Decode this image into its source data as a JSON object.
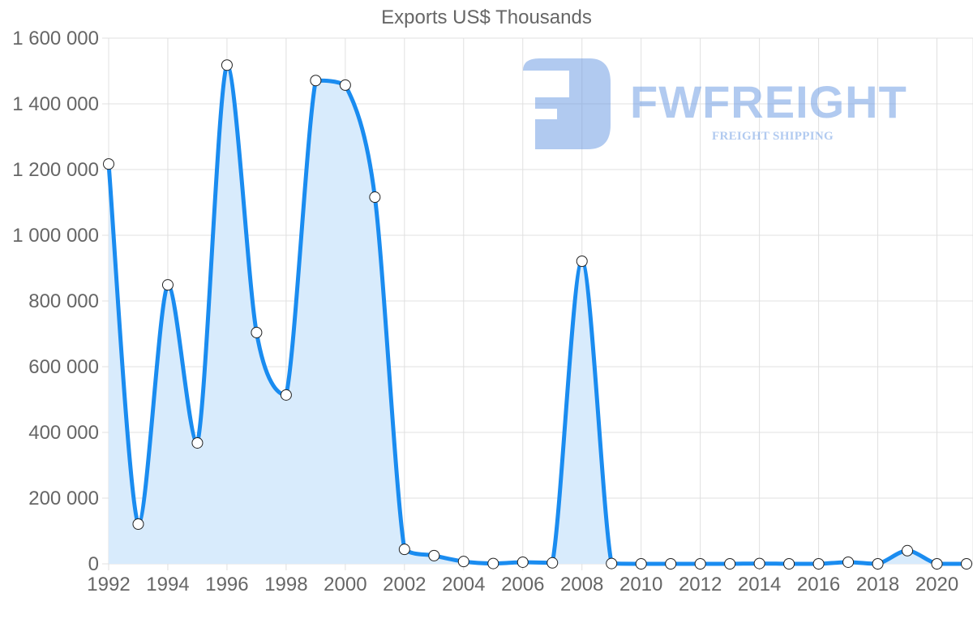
{
  "chart_data": {
    "type": "area",
    "title": "Exports US$ Thousands",
    "xlabel": "",
    "ylabel": "",
    "x": [
      1992,
      1993,
      1994,
      1995,
      1996,
      1997,
      1998,
      1999,
      2000,
      2001,
      2002,
      2003,
      2004,
      2005,
      2006,
      2007,
      2008,
      2009,
      2010,
      2011,
      2012,
      2013,
      2014,
      2015,
      2016,
      2017,
      2018,
      2019,
      2020,
      2021
    ],
    "series": [
      {
        "name": "Exports US$ Thousands",
        "values": [
          1217000,
          121000,
          849000,
          368000,
          1518000,
          704000,
          514000,
          1471000,
          1457000,
          1116000,
          44000,
          25000,
          7000,
          1000,
          5000,
          3000,
          921000,
          1000,
          0,
          0,
          0,
          0,
          1000,
          0,
          0,
          5000,
          0,
          40000,
          0,
          0
        ]
      }
    ],
    "x_tick_labels": [
      "1992",
      "1994",
      "1996",
      "1998",
      "2000",
      "2002",
      "2004",
      "2006",
      "2008",
      "2010",
      "2012",
      "2014",
      "2016",
      "2018",
      "2020"
    ],
    "y_tick_labels": [
      "0",
      "200 000",
      "400 000",
      "600 000",
      "800 000",
      "1 000 000",
      "1 200 000",
      "1 400 000",
      "1 600 000"
    ],
    "ylim": [
      0,
      1600000
    ],
    "xlim": [
      1992,
      2021
    ],
    "grid": true,
    "legend": "none",
    "colors": {
      "line": "#1a8cf0",
      "fill": "#d8ebfc",
      "point_fill": "#ffffff",
      "point_stroke": "#222222",
      "grid": "#e0e0e0",
      "text": "#666666"
    }
  },
  "watermark": {
    "brand": "FWFREIGHT",
    "tagline": "FREIGHT SHIPPING"
  }
}
